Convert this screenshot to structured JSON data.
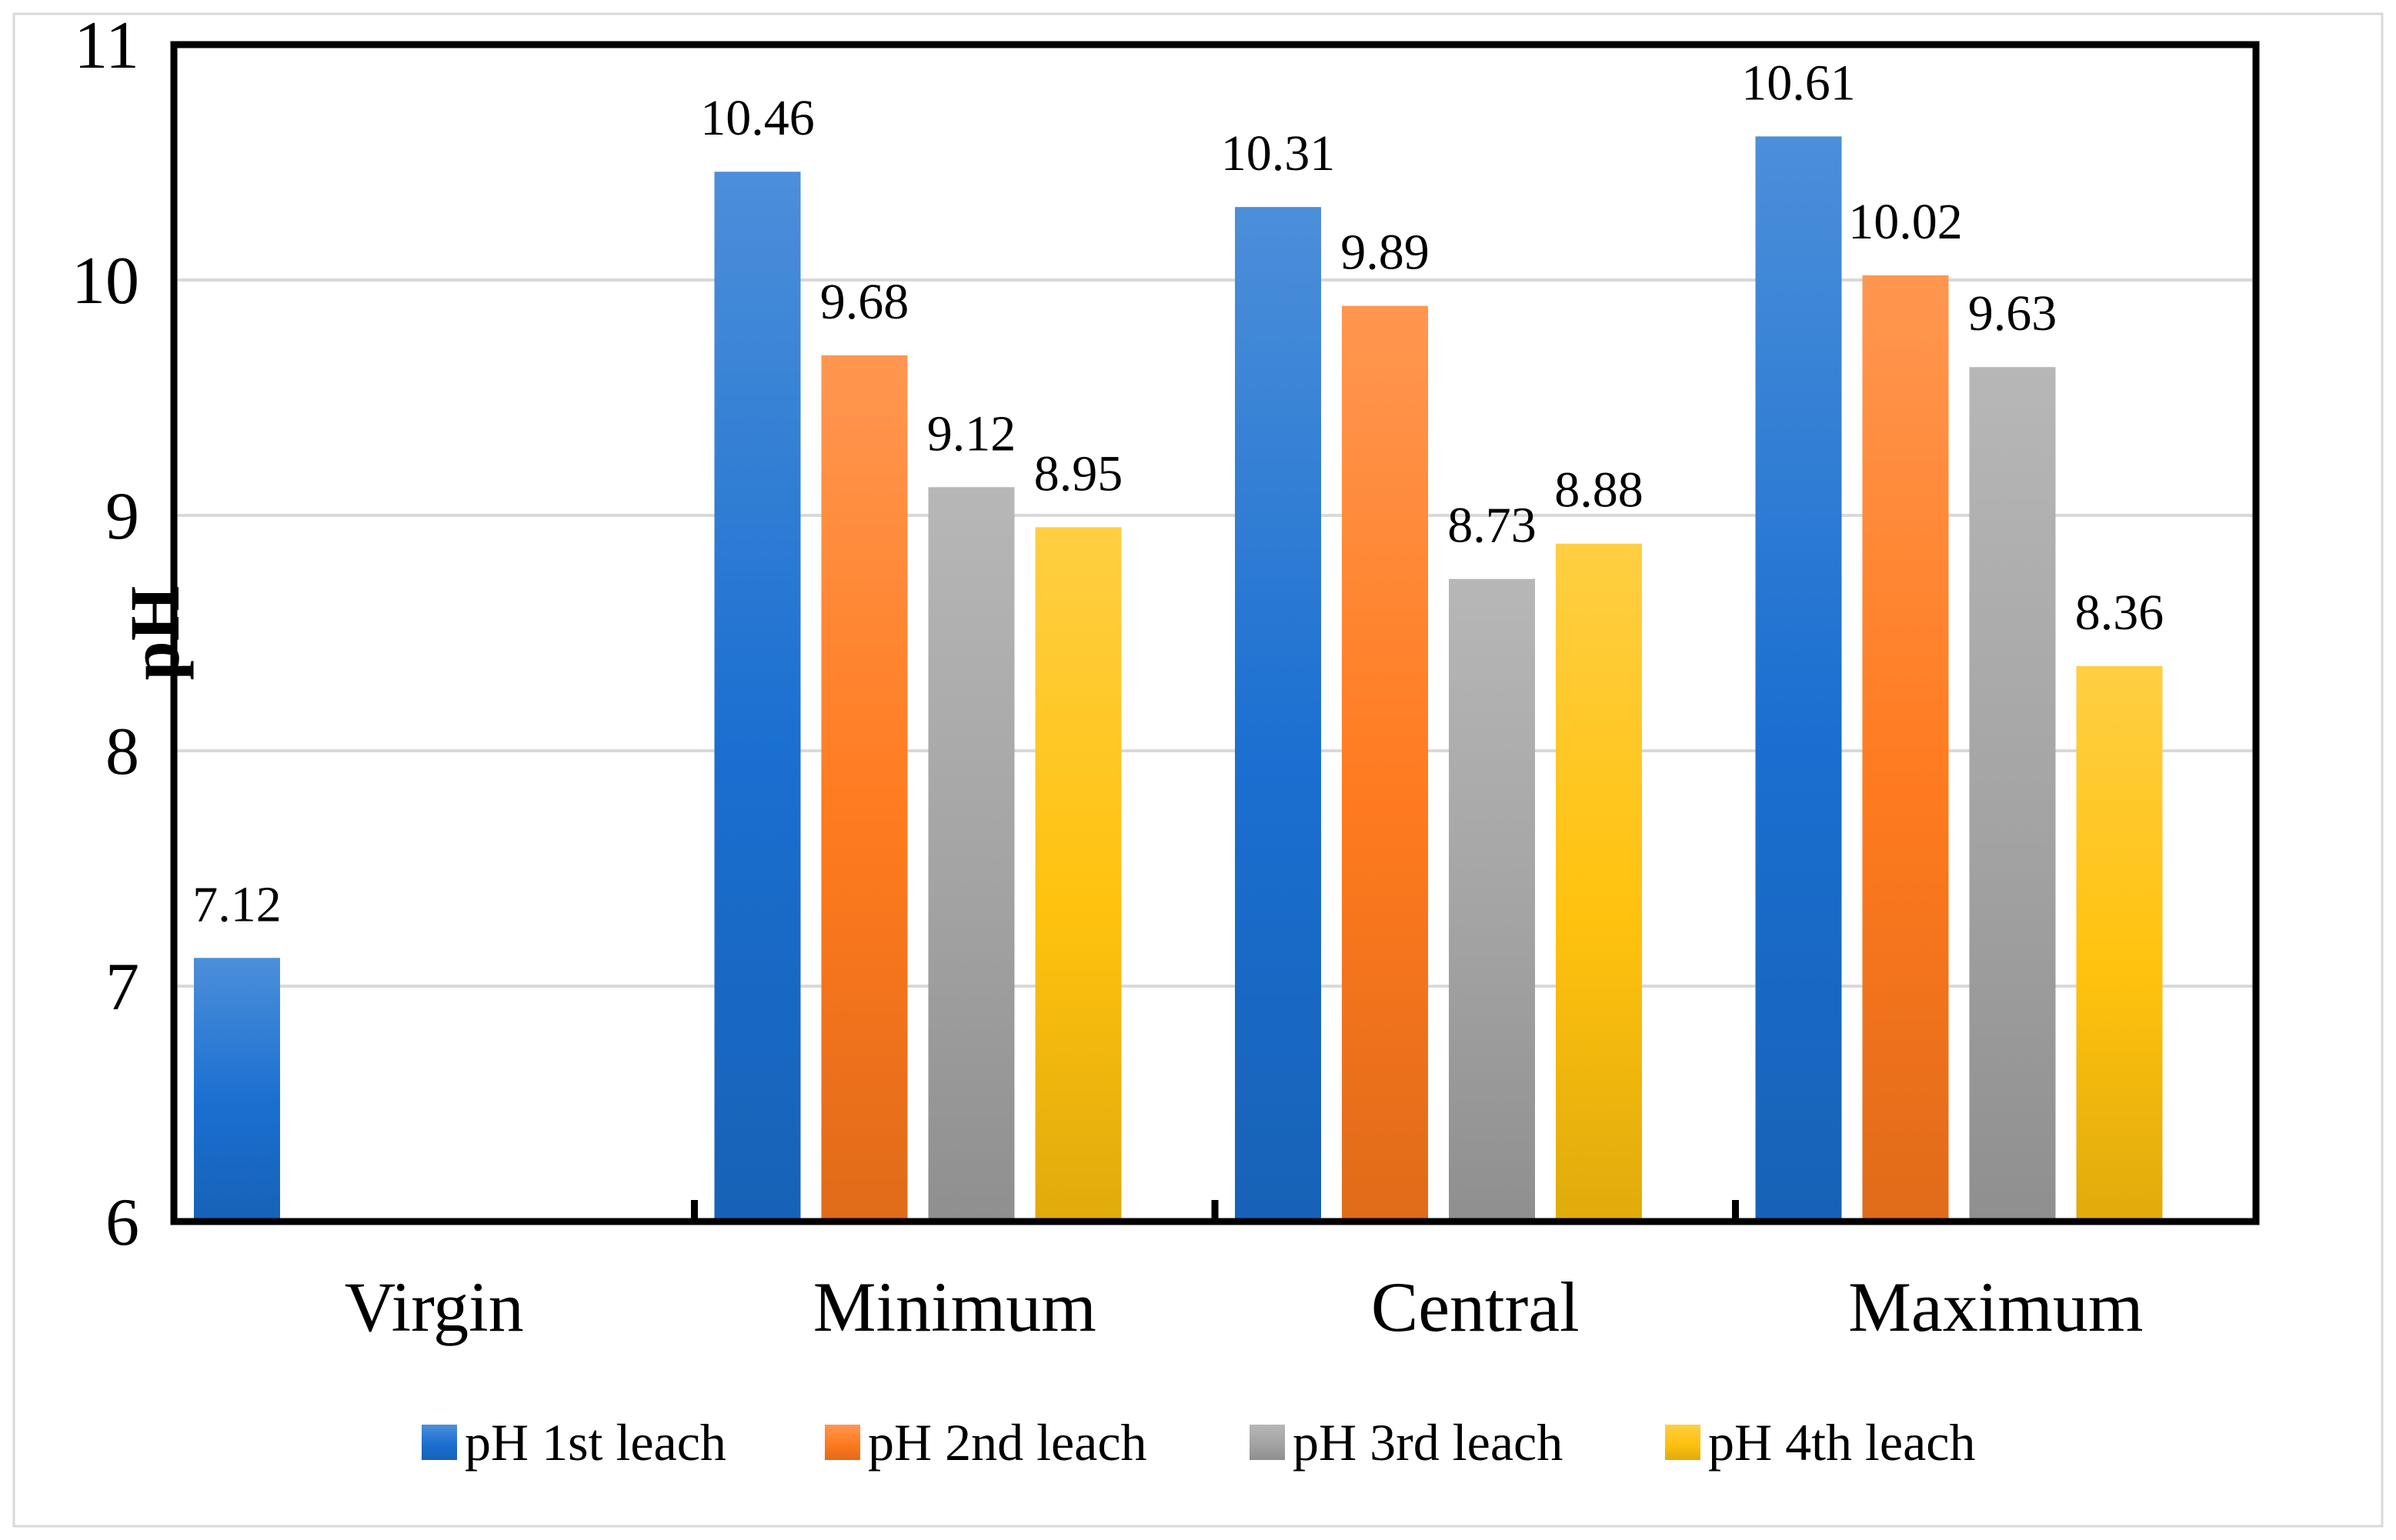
{
  "chart_data": {
    "type": "bar",
    "title": "",
    "xlabel": "",
    "ylabel": "pH",
    "ylim": [
      6,
      11
    ],
    "yticks": [
      6,
      7,
      8,
      9,
      10,
      11
    ],
    "grid": true,
    "legend_position": "bottom",
    "categories": [
      "Virgin",
      "Minimum",
      "Central",
      "Maximum"
    ],
    "series": [
      {
        "name": "pH 1st leach",
        "color": "#1a6fd0",
        "values": [
          7.12,
          10.46,
          10.31,
          10.61
        ],
        "labels": [
          "7.12",
          "10.46",
          "10.31",
          "10.61"
        ]
      },
      {
        "name": "pH 2nd leach",
        "color": "#ff7a1e",
        "values": [
          null,
          9.68,
          9.89,
          10.02
        ],
        "labels": [
          null,
          "9.68",
          "9.89",
          "10.02"
        ]
      },
      {
        "name": "pH 3rd leach",
        "color": "#a3a3a3",
        "values": [
          null,
          9.12,
          8.73,
          9.63
        ],
        "labels": [
          null,
          "9.12",
          "8.73",
          "9.63"
        ]
      },
      {
        "name": "pH 4th leach",
        "color": "#ffc20e",
        "values": [
          null,
          8.95,
          8.88,
          8.36
        ],
        "labels": [
          null,
          "8.95",
          "8.88",
          "8.36"
        ]
      }
    ]
  }
}
